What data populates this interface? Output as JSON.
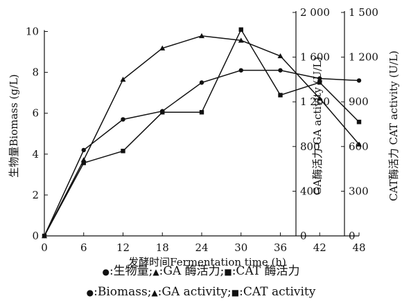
{
  "chart_data": {
    "type": "line",
    "x": [
      0,
      6,
      12,
      18,
      24,
      30,
      36,
      42,
      48
    ],
    "xlabel": "发酵时间Fermentation time (h)",
    "xlim": [
      0,
      48
    ],
    "x_ticks": [
      "0",
      "6",
      "12",
      "18",
      "24",
      "30",
      "36",
      "42",
      "48"
    ],
    "axes": {
      "y1": {
        "label": "生物量Biomass (g/L)",
        "lim": [
          0,
          11
        ],
        "ticks": [
          "0",
          "2",
          "4",
          "6",
          "8",
          "10"
        ],
        "tick_values": [
          0,
          2,
          4,
          6,
          8,
          10
        ]
      },
      "y2": {
        "label": "GA酶活力 GA activity (U/L)",
        "lim": [
          0,
          2000
        ],
        "ticks": [
          "0",
          "400",
          "800",
          "1 200",
          "1 600",
          "2 000"
        ],
        "tick_values": [
          0,
          400,
          800,
          1200,
          1600,
          2000
        ]
      },
      "y3": {
        "label": "CAT酶活力 CAT activity (U/L)",
        "lim": [
          0,
          1500
        ],
        "ticks": [
          "0",
          "300",
          "600",
          "900",
          "1 200",
          "1 500"
        ],
        "tick_values": [
          0,
          300,
          600,
          900,
          1200,
          1500
        ]
      }
    },
    "series": [
      {
        "name": "生物量",
        "axis": "y1",
        "marker": "circle",
        "values": [
          0,
          4.2,
          5.7,
          6.1,
          7.5,
          8.1,
          8.1,
          7.7,
          7.6
        ]
      },
      {
        "name": "GA 酶活力",
        "axis": "y2",
        "marker": "triangle",
        "values": [
          0,
          680,
          1400,
          1680,
          1790,
          1750,
          1610,
          1230,
          820
        ]
      },
      {
        "name": "CAT 酶活力",
        "axis": "y3",
        "marker": "square",
        "values": [
          0,
          490,
          570,
          830,
          830,
          1385,
          945,
          1030,
          765
        ]
      }
    ],
    "legend": {
      "line1": [
        "●",
        ":生物量;",
        "▲",
        ":GA 酶活力;",
        "■",
        ":CAT 酶活力"
      ],
      "line2": [
        "●",
        ":Biomass;",
        "▲",
        ":GA activity;",
        "■",
        ":CAT activity"
      ]
    },
    "grid": false,
    "colors": {
      "ink": "#111111"
    }
  }
}
